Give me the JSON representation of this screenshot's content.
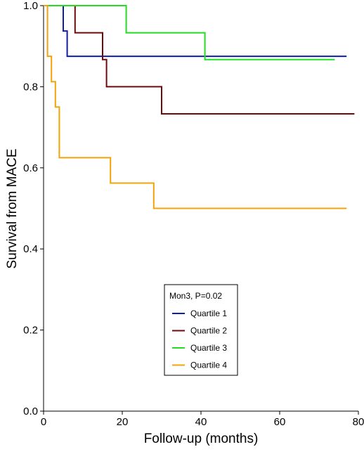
{
  "chart_data": {
    "type": "line",
    "title": "",
    "xlabel": "Follow-up (months)",
    "ylabel": "Survival from MACE",
    "xlim": [
      0,
      80
    ],
    "ylim": [
      0,
      1
    ],
    "x_ticks": [
      0,
      20,
      40,
      60,
      80
    ],
    "y_ticks": [
      0.0,
      0.2,
      0.4,
      0.6,
      0.8,
      1.0
    ],
    "x_tick_labels": [
      "0",
      "20",
      "40",
      "60",
      "80"
    ],
    "y_tick_labels": [
      "0.0",
      "0.2",
      "0.4",
      "0.6",
      "0.8",
      "1.0"
    ],
    "grid": false,
    "step": true,
    "legend": {
      "title": "Mon3, P=0.02",
      "position": "lower-center"
    },
    "series": [
      {
        "name": "Quartile 1",
        "color": "#0c1fa8",
        "x": [
          0,
          5,
          6,
          77
        ],
        "y": [
          1.0,
          0.9375,
          0.875,
          0.875
        ]
      },
      {
        "name": "Quartile 2",
        "color": "#6e0a0a",
        "x": [
          0,
          8,
          15,
          16,
          30,
          79
        ],
        "y": [
          1.0,
          0.933,
          0.867,
          0.8,
          0.733,
          0.733
        ]
      },
      {
        "name": "Quartile 3",
        "color": "#22dd22",
        "x": [
          0,
          21,
          41,
          74
        ],
        "y": [
          1.0,
          0.933,
          0.867,
          0.867
        ]
      },
      {
        "name": "Quartile 4",
        "color": "#f0a30a",
        "x": [
          0,
          1,
          2,
          3,
          4,
          17,
          28,
          77
        ],
        "y": [
          1.0,
          0.875,
          0.8125,
          0.75,
          0.625,
          0.5625,
          0.5,
          0.5
        ]
      }
    ]
  }
}
